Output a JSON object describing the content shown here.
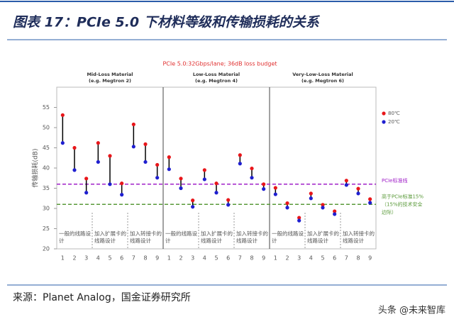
{
  "chart_data": {
    "type": "dumbbell",
    "title": "图表 17：PCIe 5.0 下材料等级和传输损耗的关系",
    "subtitle": "PCIe 5.0:32Gbps/lane; 36dB loss budget",
    "y_label": "传输损耗(dB)",
    "ylim": [
      20,
      60
    ],
    "yticks": [
      20,
      25,
      30,
      35,
      40,
      45,
      50,
      55
    ],
    "panels": [
      {
        "title_lines": [
          "Mid-Loss Material",
          "(e.g. Megtron 2)"
        ],
        "groups": [
          "一般的线路设计",
          "加入扩展卡的线路设计",
          "加入转接卡的线路设计"
        ]
      },
      {
        "title_lines": [
          "Low-Loss Material",
          "(e.g. Megtron 4)"
        ],
        "groups": [
          "一般的线路设计",
          "加入扩展卡的线路设计",
          "加入转接卡的线路设计"
        ]
      },
      {
        "title_lines": [
          "Very-Low-Loss Material",
          "(e.g. Megtron 6)"
        ],
        "groups": [
          "一般的线路设计",
          "加入扩展卡的线路设计",
          "加入转接卡的线路设计"
        ]
      }
    ],
    "categories": [
      "1",
      "2",
      "3",
      "4",
      "5",
      "6",
      "7",
      "8",
      "9",
      "1",
      "2",
      "3",
      "4",
      "5",
      "6",
      "7",
      "8",
      "9",
      "1",
      "2",
      "3",
      "4",
      "5",
      "6",
      "7",
      "8",
      "9"
    ],
    "series": [
      {
        "name": "80℃",
        "color": "#e8161a",
        "values": [
          53.1,
          45,
          37.4,
          46.2,
          43,
          36.2,
          50.8,
          45.9,
          40.8,
          42.7,
          37.4,
          32,
          39.5,
          36.2,
          32.1,
          43.2,
          39.9,
          36,
          35.1,
          31.3,
          27.7,
          33.7,
          30.9,
          29.3,
          36.9,
          34.9,
          32.3
        ]
      },
      {
        "name": "20℃",
        "color": "#1f1fd0",
        "values": [
          46.2,
          39.5,
          33.9,
          41.5,
          36,
          33.4,
          45.3,
          41.5,
          37.6,
          39.7,
          35,
          30.4,
          37.2,
          33.9,
          30.9,
          41.1,
          37.6,
          34.8,
          33.5,
          30.2,
          27,
          32.5,
          30.2,
          28.6,
          35.8,
          33.7,
          31.4
        ]
      }
    ],
    "reference_lines": [
      {
        "value": 36,
        "color": "#a020c8",
        "label_lines": [
          "PCIe标准线"
        ]
      },
      {
        "value": 31,
        "color": "#5a9a3a",
        "label_lines": [
          "高于PCIe标准15%",
          "（15%的技术安全",
          "边际）"
        ]
      }
    ],
    "source": "来源：Planet Analog，国金证券研究所",
    "watermark": "头条 @未来智库"
  }
}
